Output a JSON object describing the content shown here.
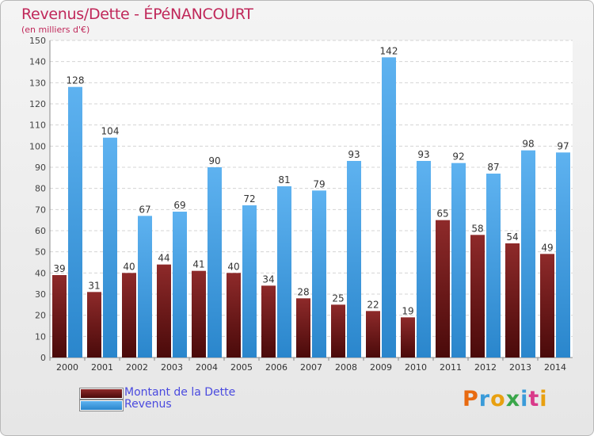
{
  "chart_data": {
    "type": "bar",
    "title": "Revenus/Dette - ÉPéNANCOURT",
    "subtitle": "(en milliers d'€)",
    "categories": [
      "2000",
      "2001",
      "2002",
      "2003",
      "2004",
      "2005",
      "2006",
      "2007",
      "2008",
      "2009",
      "2010",
      "2011",
      "2012",
      "2013",
      "2014"
    ],
    "series": [
      {
        "name": "Montant de la Dette",
        "color": "#7a1f1f",
        "values": [
          39,
          31,
          40,
          44,
          41,
          40,
          34,
          28,
          25,
          22,
          19,
          65,
          58,
          54,
          49
        ]
      },
      {
        "name": "Revenus",
        "color": "#3d9be0",
        "values": [
          128,
          104,
          67,
          69,
          90,
          72,
          81,
          79,
          93,
          142,
          93,
          92,
          87,
          98,
          97
        ]
      }
    ],
    "ylim": [
      0,
      150
    ],
    "yticks": [
      0,
      10,
      20,
      30,
      40,
      50,
      60,
      70,
      80,
      90,
      100,
      110,
      120,
      130,
      140,
      150
    ],
    "grid": true,
    "legend_position": "bottom-left"
  },
  "logo": {
    "text": "Proxiti"
  }
}
